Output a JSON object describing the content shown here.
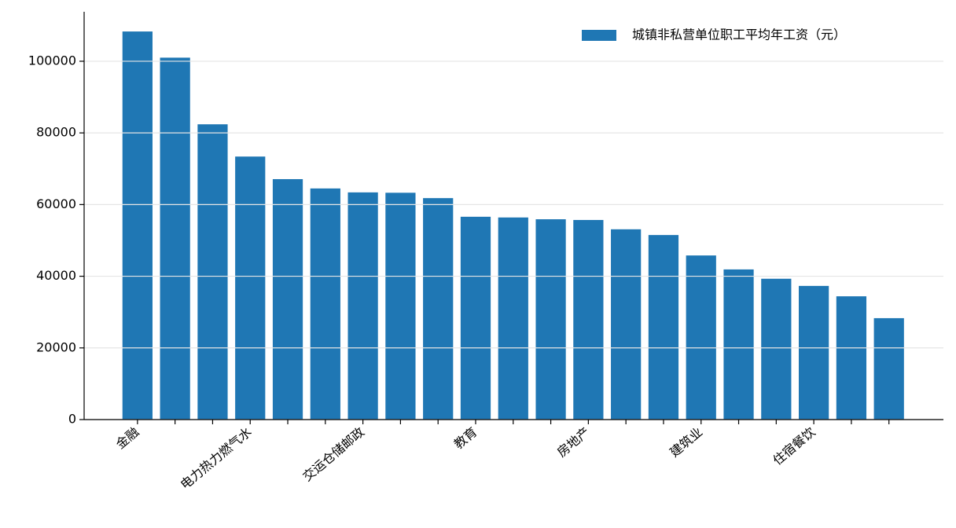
{
  "chart_data": {
    "type": "bar",
    "categories": [
      "金融",
      null,
      null,
      "电力热力燃气水",
      null,
      null,
      "交运仓储邮政",
      null,
      null,
      "教育",
      null,
      null,
      "房地产",
      null,
      null,
      "建筑业",
      null,
      null,
      "住宿餐饮",
      null,
      null
    ],
    "series": [
      {
        "name": "城镇非私营单位职工平均年工资（元）",
        "color": "#1f77b4",
        "values": [
          108300,
          101000,
          82400,
          73400,
          67100,
          64500,
          63400,
          63300,
          61800,
          56600,
          56400,
          55900,
          55700,
          53100,
          51500,
          45800,
          41900,
          39300,
          37300,
          34400,
          28300
        ]
      }
    ],
    "ylim": [
      0,
      113800
    ],
    "yticks": [
      0,
      20000,
      40000,
      60000,
      80000,
      100000
    ],
    "grid": true,
    "legend": "upper right"
  }
}
